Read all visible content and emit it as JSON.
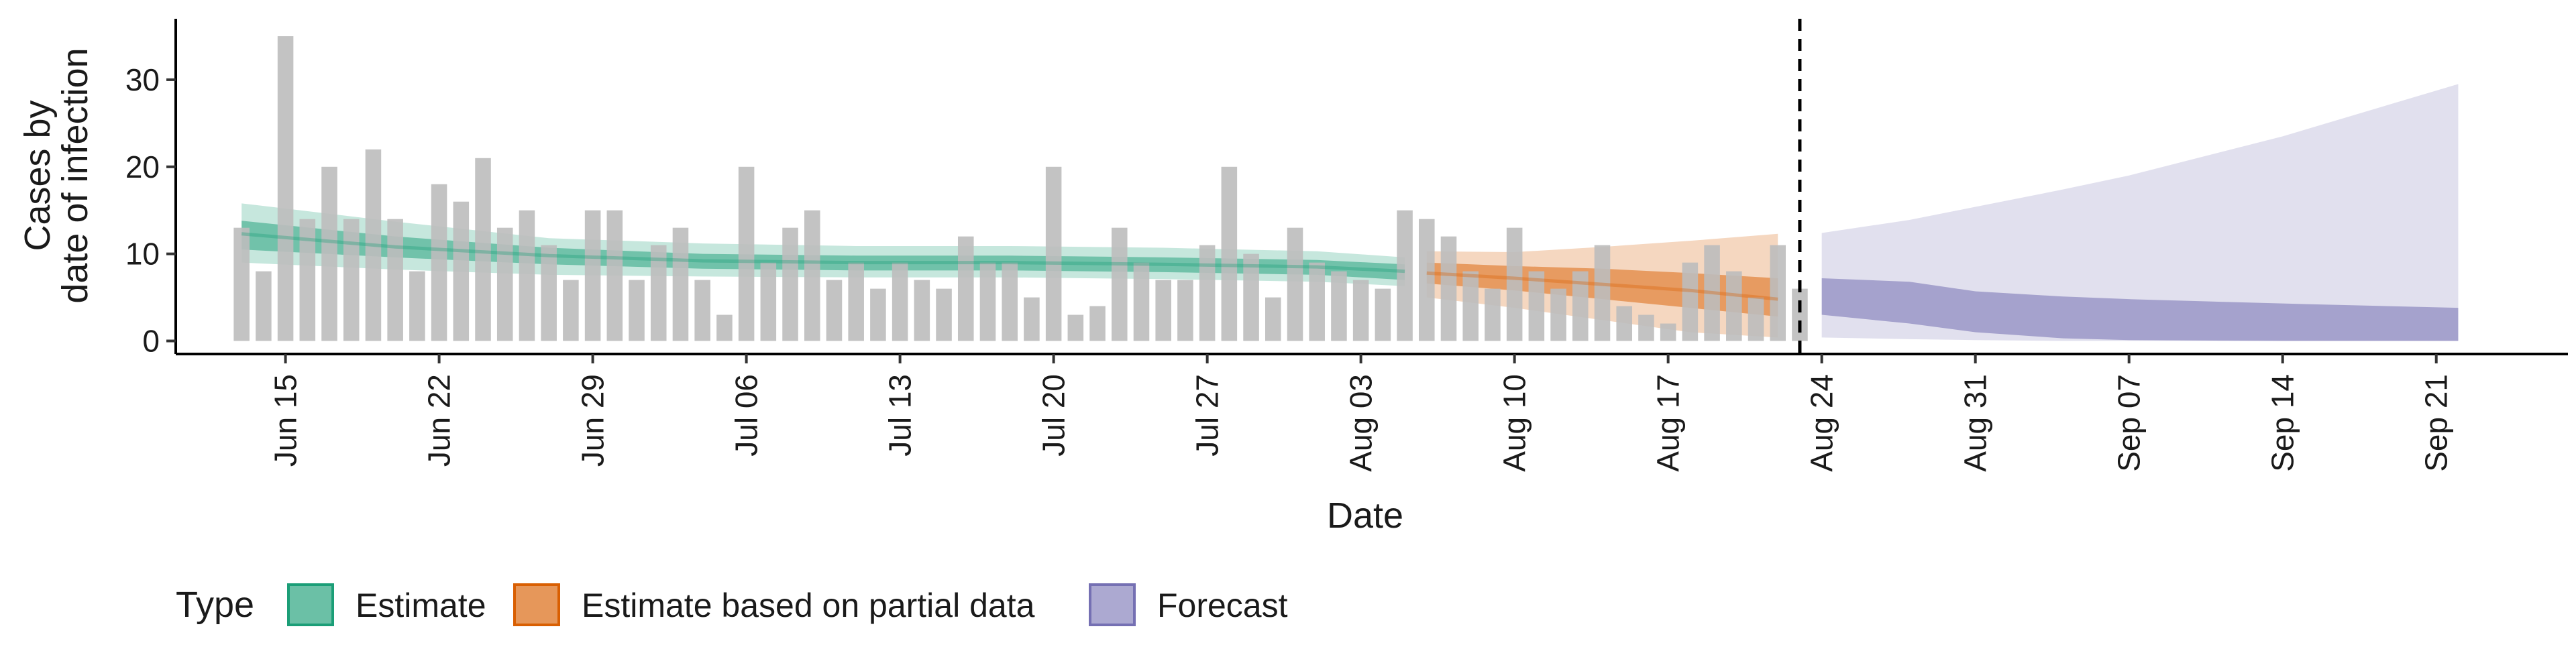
{
  "chart_data": {
    "type": "bar",
    "xlabel": "Date",
    "ylabel_lines": [
      "Cases by",
      "date of infection"
    ],
    "ylim": [
      -1.5,
      37
    ],
    "yticks": [
      0,
      10,
      20,
      30
    ],
    "xlim": [
      "2021-06-10",
      "2021-09-27"
    ],
    "xticks": [
      "Jun 15",
      "Jun 22",
      "Jun 29",
      "Jul 06",
      "Jul 13",
      "Jul 20",
      "Jul 27",
      "Aug 03",
      "Aug 10",
      "Aug 17",
      "Aug 24",
      "Aug 31",
      "Sep 07",
      "Sep 14",
      "Sep 21"
    ],
    "xtick_dates": [
      "2021-06-15",
      "2021-06-22",
      "2021-06-29",
      "2021-07-06",
      "2021-07-13",
      "2021-07-20",
      "2021-07-27",
      "2021-08-03",
      "2021-08-10",
      "2021-08-17",
      "2021-08-24",
      "2021-08-31",
      "2021-09-07",
      "2021-09-14",
      "2021-09-21"
    ],
    "forecast_date": "2021-08-23",
    "bar_color": "#bdbdbd",
    "cases": {
      "start": "2021-06-13",
      "values": [
        13,
        8,
        35,
        14,
        20,
        14,
        22,
        14,
        8,
        18,
        16,
        21,
        13,
        15,
        11,
        7,
        15,
        15,
        7,
        11,
        13,
        7,
        3,
        20,
        9,
        13,
        15,
        7,
        9,
        6,
        9,
        7,
        6,
        12,
        9,
        9,
        5,
        20,
        3,
        4,
        13,
        9,
        7,
        7,
        11,
        20,
        10,
        5,
        13,
        9,
        8,
        7,
        6,
        15,
        14,
        12,
        8,
        6,
        13,
        8,
        6,
        8,
        11,
        4,
        3,
        2,
        9,
        11,
        8,
        5,
        11,
        6
      ]
    },
    "series": [
      {
        "name": "Estimate",
        "color": "#1b9e77",
        "dates": [
          "2021-06-13",
          "2021-06-20",
          "2021-06-27",
          "2021-07-04",
          "2021-07-11",
          "2021-07-18",
          "2021-07-25",
          "2021-08-01",
          "2021-08-05"
        ],
        "median": [
          12.3,
          10.8,
          9.8,
          9.2,
          9.0,
          9.0,
          8.8,
          8.5,
          8.0
        ],
        "lower50": [
          10.5,
          9.6,
          8.8,
          8.3,
          8.1,
          8.1,
          7.9,
          7.6,
          7.0
        ],
        "upper50": [
          13.8,
          12.0,
          10.7,
          10.0,
          9.8,
          9.8,
          9.6,
          9.3,
          8.8
        ],
        "lower90": [
          9.0,
          8.2,
          7.6,
          7.4,
          7.3,
          7.3,
          7.1,
          6.8,
          6.3
        ],
        "upper90": [
          15.8,
          13.7,
          11.8,
          11.2,
          10.9,
          10.9,
          10.7,
          10.3,
          9.6
        ]
      },
      {
        "name": "Estimate based on partial data",
        "color": "#d95f02",
        "dates": [
          "2021-08-06",
          "2021-08-10",
          "2021-08-14",
          "2021-08-18",
          "2021-08-22"
        ],
        "median": [
          7.8,
          7.2,
          6.5,
          5.8,
          4.8
        ],
        "lower50": [
          6.6,
          5.8,
          4.8,
          3.8,
          2.8
        ],
        "upper50": [
          9.0,
          8.6,
          8.3,
          7.8,
          7.2
        ],
        "lower90": [
          5.0,
          3.8,
          2.4,
          1.0,
          0.4
        ],
        "upper90": [
          10.3,
          10.2,
          10.8,
          11.5,
          12.3
        ]
      },
      {
        "name": "Forecast",
        "color": "#7570b3",
        "dates": [
          "2021-08-24",
          "2021-08-28",
          "2021-08-31",
          "2021-09-04",
          "2021-09-07",
          "2021-09-14",
          "2021-09-22"
        ],
        "lower50": [
          3.0,
          2.0,
          1.0,
          0.3,
          0.1,
          0.0,
          0.0
        ],
        "upper50": [
          7.2,
          6.8,
          5.7,
          5.1,
          4.8,
          4.3,
          3.8
        ],
        "lower90": [
          0.4,
          0.2,
          0.1,
          0.0,
          0.0,
          0.0,
          0.0
        ],
        "upper90": [
          12.4,
          13.9,
          15.4,
          17.4,
          19.0,
          23.5,
          29.5
        ]
      }
    ],
    "legend": {
      "title": "Type",
      "position": "bottom-left",
      "items": [
        "Estimate",
        "Estimate based on partial data",
        "Forecast"
      ]
    },
    "grid": false
  }
}
